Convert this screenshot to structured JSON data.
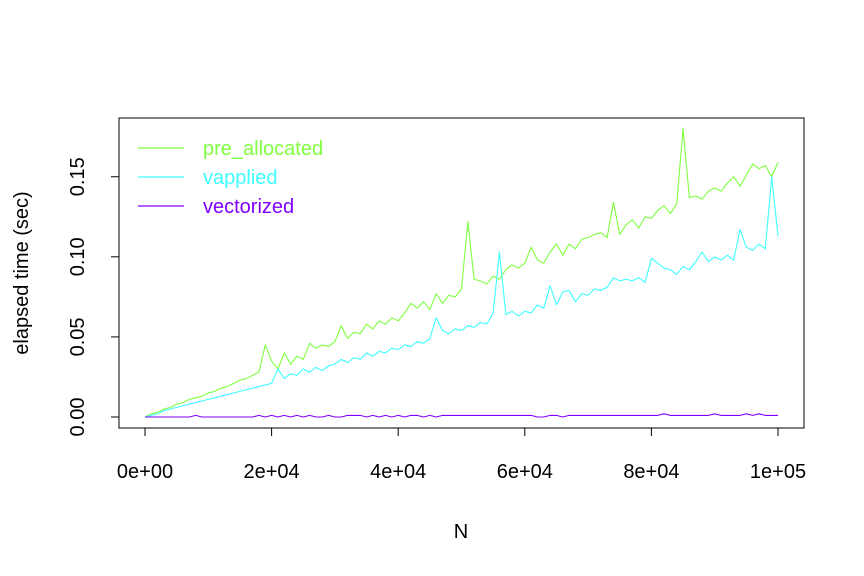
{
  "chart_data": {
    "type": "line",
    "title": "",
    "xlabel": "N",
    "ylabel": "elapsed time (sec)",
    "xlim": [
      0,
      100000
    ],
    "ylim": [
      0,
      0.18
    ],
    "x_ticks": [
      0,
      20000,
      40000,
      60000,
      80000,
      100000
    ],
    "x_tick_labels": [
      "0e+00",
      "2e+04",
      "4e+04",
      "6e+04",
      "8e+04",
      "1e+05"
    ],
    "y_ticks": [
      0,
      0.05,
      0.1,
      0.15
    ],
    "y_tick_labels": [
      "0.00",
      "0.05",
      "0.10",
      "0.15"
    ],
    "grid": false,
    "legend_position": "top-left",
    "x": [
      0,
      1000,
      2000,
      3000,
      4000,
      5000,
      6000,
      7000,
      8000,
      9000,
      10000,
      11000,
      12000,
      13000,
      14000,
      15000,
      16000,
      17000,
      18000,
      19000,
      20000,
      21000,
      22000,
      23000,
      24000,
      25000,
      26000,
      27000,
      28000,
      29000,
      30000,
      31000,
      32000,
      33000,
      34000,
      35000,
      36000,
      37000,
      38000,
      39000,
      40000,
      41000,
      42000,
      43000,
      44000,
      45000,
      46000,
      47000,
      48000,
      49000,
      50000,
      51000,
      52000,
      53000,
      54000,
      55000,
      56000,
      57000,
      58000,
      59000,
      60000,
      61000,
      62000,
      63000,
      64000,
      65000,
      66000,
      67000,
      68000,
      69000,
      70000,
      71000,
      72000,
      73000,
      74000,
      75000,
      76000,
      77000,
      78000,
      79000,
      80000,
      81000,
      82000,
      83000,
      84000,
      85000,
      86000,
      87000,
      88000,
      89000,
      90000,
      91000,
      92000,
      93000,
      94000,
      95000,
      96000,
      97000,
      98000,
      99000,
      100000
    ],
    "series": [
      {
        "name": "pre_allocated",
        "color": "#7fff3f",
        "values": [
          0.0,
          0.002,
          0.003,
          0.005,
          0.006,
          0.008,
          0.009,
          0.011,
          0.012,
          0.013,
          0.015,
          0.016,
          0.018,
          0.019,
          0.021,
          0.023,
          0.024,
          0.026,
          0.028,
          0.045,
          0.035,
          0.03,
          0.04,
          0.033,
          0.038,
          0.036,
          0.046,
          0.043,
          0.045,
          0.044,
          0.047,
          0.057,
          0.049,
          0.053,
          0.052,
          0.058,
          0.055,
          0.06,
          0.058,
          0.062,
          0.06,
          0.065,
          0.071,
          0.068,
          0.072,
          0.067,
          0.077,
          0.071,
          0.076,
          0.075,
          0.08,
          0.122,
          0.086,
          0.085,
          0.083,
          0.088,
          0.086,
          0.092,
          0.095,
          0.093,
          0.096,
          0.106,
          0.098,
          0.096,
          0.103,
          0.108,
          0.101,
          0.108,
          0.105,
          0.111,
          0.112,
          0.114,
          0.115,
          0.112,
          0.134,
          0.114,
          0.12,
          0.123,
          0.118,
          0.125,
          0.124,
          0.129,
          0.132,
          0.127,
          0.133,
          0.18,
          0.137,
          0.138,
          0.136,
          0.141,
          0.143,
          0.141,
          0.146,
          0.15,
          0.144,
          0.151,
          0.158,
          0.155,
          0.157,
          0.15,
          0.159
        ]
      },
      {
        "name": "vapplied",
        "color": "#3fffff",
        "values": [
          0.0,
          0.001,
          0.002,
          0.004,
          0.005,
          0.006,
          0.007,
          0.008,
          0.009,
          0.01,
          0.011,
          0.012,
          0.013,
          0.014,
          0.015,
          0.016,
          0.017,
          0.018,
          0.019,
          0.02,
          0.021,
          0.03,
          0.024,
          0.027,
          0.026,
          0.03,
          0.028,
          0.031,
          0.029,
          0.032,
          0.033,
          0.036,
          0.034,
          0.037,
          0.036,
          0.04,
          0.038,
          0.041,
          0.04,
          0.043,
          0.042,
          0.045,
          0.044,
          0.047,
          0.046,
          0.049,
          0.062,
          0.054,
          0.052,
          0.055,
          0.054,
          0.057,
          0.056,
          0.059,
          0.058,
          0.065,
          0.103,
          0.064,
          0.066,
          0.063,
          0.066,
          0.065,
          0.07,
          0.068,
          0.082,
          0.07,
          0.078,
          0.079,
          0.072,
          0.077,
          0.076,
          0.08,
          0.079,
          0.081,
          0.087,
          0.085,
          0.086,
          0.085,
          0.087,
          0.084,
          0.099,
          0.096,
          0.093,
          0.092,
          0.089,
          0.094,
          0.092,
          0.097,
          0.103,
          0.097,
          0.1,
          0.098,
          0.101,
          0.098,
          0.117,
          0.106,
          0.104,
          0.108,
          0.105,
          0.15,
          0.113
        ]
      },
      {
        "name": "vectorized",
        "color": "#7f00ff",
        "values": [
          0,
          0,
          0,
          0,
          0,
          0,
          0,
          0,
          0.001,
          0,
          0,
          0,
          0,
          0,
          0,
          0,
          0,
          0,
          0.001,
          0,
          0.001,
          0,
          0.001,
          0,
          0.001,
          0,
          0.001,
          0,
          0,
          0.001,
          0,
          0,
          0.001,
          0.001,
          0.001,
          0,
          0.001,
          0,
          0.001,
          0,
          0.001,
          0,
          0.001,
          0.001,
          0,
          0.001,
          0,
          0.001,
          0.001,
          0.001,
          0.001,
          0.001,
          0.001,
          0.001,
          0.001,
          0.001,
          0.001,
          0.001,
          0.001,
          0.001,
          0.001,
          0.001,
          0,
          0,
          0.001,
          0.001,
          0,
          0.001,
          0.001,
          0.001,
          0.001,
          0.001,
          0.001,
          0.001,
          0.001,
          0.001,
          0.001,
          0.001,
          0.001,
          0.001,
          0.001,
          0.001,
          0.002,
          0.001,
          0.001,
          0.001,
          0.001,
          0.001,
          0.001,
          0.001,
          0.002,
          0.001,
          0.001,
          0.001,
          0.001,
          0.002,
          0.001,
          0.002,
          0.001,
          0.001,
          0.001
        ]
      }
    ]
  }
}
